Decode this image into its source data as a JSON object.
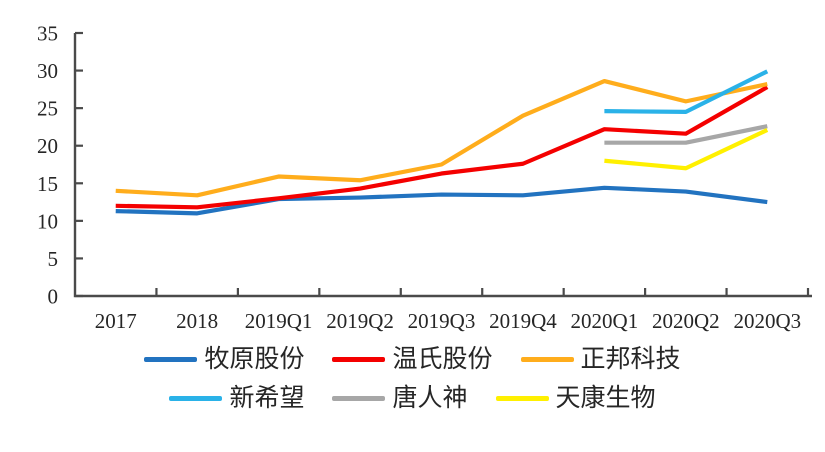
{
  "chart_data": {
    "type": "line",
    "title": "",
    "xlabel": "",
    "ylabel": "",
    "categories": [
      "2017",
      "2018",
      "2019Q1",
      "2019Q2",
      "2019Q3",
      "2019Q4",
      "2020Q1",
      "2020Q2",
      "2020Q3"
    ],
    "ylim": [
      0,
      35
    ],
    "yticks": [
      0,
      5,
      10,
      15,
      20,
      25,
      30,
      35
    ],
    "grid": false,
    "legend_position": "bottom",
    "legend_rows": [
      [
        0,
        1,
        2
      ],
      [
        3,
        4,
        5
      ]
    ],
    "axis_color": "#4a4a4a",
    "label_color": "#262626",
    "series": [
      {
        "name": "牧原股份",
        "color": "#2273C0",
        "values": [
          11.3,
          11.0,
          12.9,
          13.1,
          13.5,
          13.4,
          14.4,
          13.9,
          12.5
        ]
      },
      {
        "name": "温氏股份",
        "color": "#F40000",
        "values": [
          12.0,
          11.8,
          13.0,
          14.3,
          16.3,
          17.6,
          22.2,
          21.6,
          27.8
        ]
      },
      {
        "name": "正邦科技",
        "color": "#FFAD1C",
        "values": [
          14.0,
          13.4,
          15.9,
          15.4,
          17.5,
          24.0,
          28.6,
          25.9,
          28.2
        ]
      },
      {
        "name": "新希望",
        "color": "#2AB2E8",
        "values": [
          null,
          null,
          null,
          null,
          null,
          null,
          24.6,
          24.5,
          29.9
        ]
      },
      {
        "name": "唐人神",
        "color": "#A7A7A7",
        "values": [
          null,
          null,
          null,
          null,
          null,
          null,
          20.4,
          20.4,
          22.6
        ]
      },
      {
        "name": "天康生物",
        "color": "#FFF000",
        "values": [
          null,
          null,
          null,
          null,
          null,
          null,
          18.0,
          17.0,
          22.1
        ]
      }
    ]
  }
}
